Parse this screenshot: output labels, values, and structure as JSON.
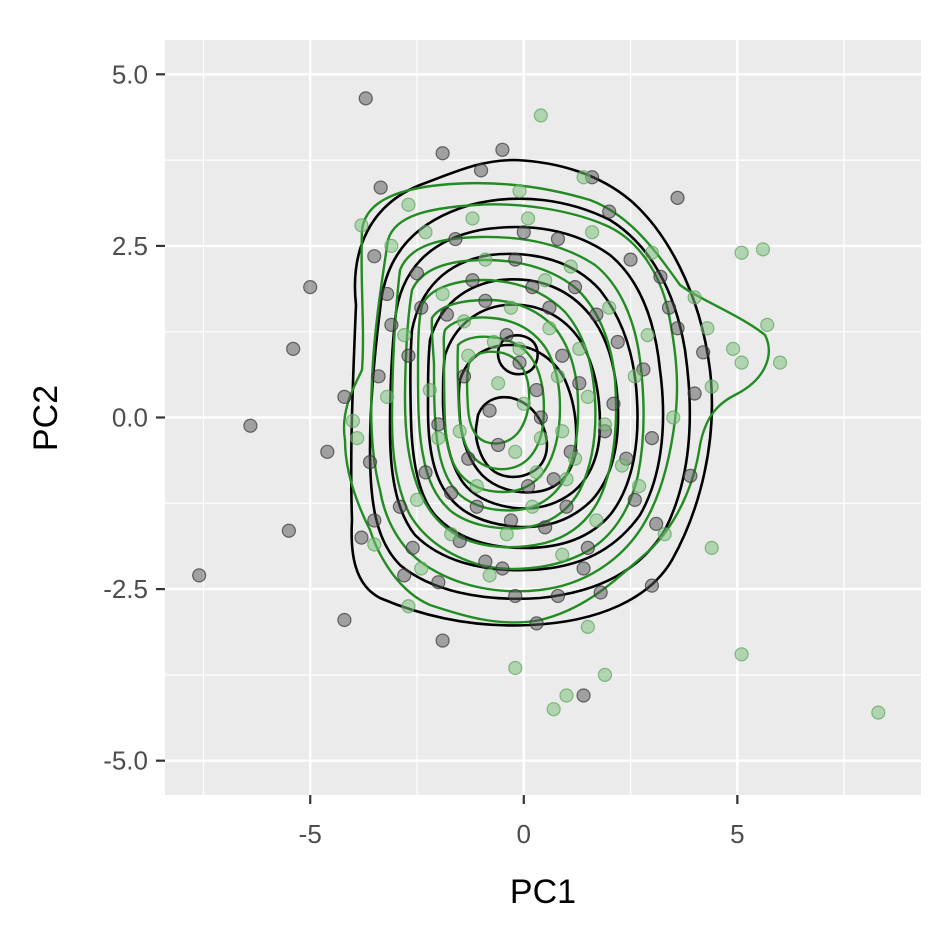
{
  "chart_data": {
    "type": "scatter",
    "title": "",
    "xlabel": "PC1",
    "ylabel": "PC2",
    "xlim": [
      -8.4,
      9.3
    ],
    "ylim": [
      -5.5,
      5.5
    ],
    "x_ticks": [
      -5,
      0,
      5
    ],
    "x_tick_labels": [
      "-5",
      "0",
      "5"
    ],
    "y_ticks": [
      -5,
      -2.5,
      0,
      2.5,
      5
    ],
    "y_tick_labels": [
      "-5.0",
      "-2.5",
      "0.0",
      "2.5",
      "5.0"
    ],
    "grid": true,
    "legend": "none",
    "colors": {
      "panel": "#ebebeb",
      "grid": "#ffffff",
      "group_a_points": "#555555",
      "group_a_contour": "#000000",
      "group_b_points": "#7fbf7f",
      "group_b_contour": "#228b22"
    },
    "series": [
      {
        "color": "#555555",
        "points": [
          [
            -3.7,
            4.65
          ],
          [
            -1.9,
            3.85
          ],
          [
            -0.5,
            3.9
          ],
          [
            -3.35,
            3.35
          ],
          [
            1.6,
            3.5
          ],
          [
            3.6,
            3.2
          ],
          [
            -5.0,
            1.9
          ],
          [
            -5.4,
            1.0
          ],
          [
            -6.4,
            -0.12
          ],
          [
            -7.6,
            -2.3
          ],
          [
            -5.5,
            -1.65
          ],
          [
            -4.6,
            -0.5
          ],
          [
            -4.2,
            -2.95
          ],
          [
            -1.9,
            -3.25
          ],
          [
            0.3,
            -3.0
          ],
          [
            1.4,
            -4.05
          ],
          [
            -3.5,
            2.35
          ],
          [
            -3.2,
            1.8
          ],
          [
            -3.1,
            1.35
          ],
          [
            -3.4,
            0.6
          ],
          [
            -4.2,
            0.3
          ],
          [
            -3.6,
            -0.65
          ],
          [
            -3.8,
            -1.75
          ],
          [
            -3.5,
            -1.5
          ],
          [
            -2.8,
            -2.3
          ],
          [
            -2.0,
            -2.4
          ],
          [
            3.0,
            -2.45
          ],
          [
            1.8,
            -2.55
          ],
          [
            -0.2,
            -2.6
          ],
          [
            0.8,
            -2.6
          ],
          [
            3.2,
            2.05
          ],
          [
            3.4,
            1.6
          ],
          [
            3.6,
            1.3
          ],
          [
            4.0,
            0.35
          ],
          [
            3.9,
            -0.85
          ],
          [
            3.1,
            -1.55
          ],
          [
            4.2,
            0.95
          ],
          [
            2.0,
            3.0
          ],
          [
            -1.0,
            3.6
          ],
          [
            0.8,
            2.6
          ],
          [
            -2.5,
            2.1
          ],
          [
            -0.9,
            -2.1
          ],
          [
            2.6,
            -1.2
          ],
          [
            -2.3,
            -0.8
          ],
          [
            1.1,
            -0.5
          ],
          [
            -0.4,
            1.2
          ],
          [
            0.3,
            0.4
          ],
          [
            -1.4,
            0.6
          ],
          [
            1.7,
            1.5
          ],
          [
            -1.1,
            -1.3
          ],
          [
            0.5,
            -1.6
          ],
          [
            2.1,
            0.2
          ],
          [
            -1.8,
            1.5
          ],
          [
            1.2,
            1.9
          ],
          [
            -0.6,
            -0.4
          ],
          [
            0.9,
            0.9
          ],
          [
            -2.0,
            -0.1
          ],
          [
            2.4,
            -0.6
          ],
          [
            0.1,
            -1.0
          ],
          [
            -1.5,
            -1.8
          ],
          [
            1.5,
            -1.9
          ],
          [
            -0.2,
            2.3
          ],
          [
            -2.7,
            0.9
          ],
          [
            2.8,
            0.7
          ],
          [
            -0.8,
            0.1
          ],
          [
            0.6,
            1.6
          ],
          [
            -1.2,
            2.0
          ],
          [
            1.9,
            -0.2
          ],
          [
            -0.3,
            -1.5
          ],
          [
            0.4,
            0.0
          ],
          [
            -1.7,
            -1.1
          ],
          [
            1.3,
            0.5
          ],
          [
            -0.1,
            0.8
          ],
          [
            0.7,
            -0.9
          ],
          [
            -2.4,
            1.6
          ],
          [
            2.2,
            1.1
          ],
          [
            -0.9,
            1.7
          ],
          [
            1.0,
            -1.3
          ],
          [
            -1.3,
            -0.6
          ],
          [
            0.2,
            1.9
          ],
          [
            -2.9,
            -1.3
          ],
          [
            3.0,
            -0.3
          ],
          [
            -0.5,
            -2.2
          ],
          [
            0.0,
            2.7
          ],
          [
            2.5,
            2.3
          ],
          [
            -2.6,
            -1.9
          ],
          [
            1.4,
            -2.2
          ],
          [
            -1.6,
            2.6
          ]
        ]
      },
      {
        "color": "#7fbf7f",
        "points": [
          [
            0.4,
            4.4
          ],
          [
            -3.8,
            2.8
          ],
          [
            -2.7,
            3.1
          ],
          [
            1.4,
            3.5
          ],
          [
            5.1,
            2.4
          ],
          [
            5.6,
            2.45
          ],
          [
            5.7,
            1.35
          ],
          [
            6.0,
            0.8
          ],
          [
            4.9,
            1.0
          ],
          [
            5.1,
            0.8
          ],
          [
            4.3,
            1.3
          ],
          [
            4.4,
            -1.9
          ],
          [
            8.3,
            -4.3
          ],
          [
            5.1,
            -3.45
          ],
          [
            1.5,
            -3.05
          ],
          [
            1.9,
            -3.75
          ],
          [
            1.0,
            -4.05
          ],
          [
            0.7,
            -4.25
          ],
          [
            -0.2,
            -3.65
          ],
          [
            -2.7,
            -2.75
          ],
          [
            -3.5,
            -1.85
          ],
          [
            -3.9,
            -0.3
          ],
          [
            -4.0,
            -0.05
          ],
          [
            -3.1,
            2.5
          ],
          [
            -0.1,
            3.3
          ],
          [
            4.0,
            1.75
          ],
          [
            4.4,
            0.45
          ],
          [
            3.0,
            2.4
          ],
          [
            -2.3,
            2.7
          ],
          [
            2.7,
            -1.0
          ],
          [
            -2.0,
            -0.3
          ],
          [
            1.5,
            0.3
          ],
          [
            -0.7,
            1.1
          ],
          [
            0.9,
            -0.2
          ],
          [
            -1.3,
            0.9
          ],
          [
            0.3,
            -0.8
          ],
          [
            2.0,
            1.6
          ],
          [
            -1.9,
            1.8
          ],
          [
            1.1,
            2.2
          ],
          [
            -0.4,
            -1.7
          ],
          [
            0.6,
            1.3
          ],
          [
            -1.1,
            -1.0
          ],
          [
            2.3,
            -0.7
          ],
          [
            -2.5,
            -1.2
          ],
          [
            0.0,
            0.2
          ],
          [
            1.7,
            -1.5
          ],
          [
            -0.9,
            2.3
          ],
          [
            0.8,
            0.6
          ],
          [
            -1.5,
            -0.2
          ],
          [
            1.3,
            1.0
          ],
          [
            -0.2,
            -0.5
          ],
          [
            2.6,
            0.6
          ],
          [
            -2.2,
            0.4
          ],
          [
            0.5,
            2.0
          ],
          [
            -0.6,
            0.5
          ],
          [
            1.9,
            -0.1
          ],
          [
            -1.7,
            -1.7
          ],
          [
            0.2,
            -1.3
          ],
          [
            -0.3,
            1.6
          ],
          [
            1.0,
            -0.9
          ],
          [
            -2.8,
            1.2
          ],
          [
            2.9,
            1.2
          ],
          [
            -1.2,
            2.9
          ],
          [
            0.1,
            2.9
          ],
          [
            1.6,
            2.7
          ],
          [
            -2.4,
            -2.2
          ],
          [
            0.9,
            -2.0
          ],
          [
            -0.8,
            -2.3
          ],
          [
            3.3,
            -1.7
          ],
          [
            -3.2,
            0.3
          ],
          [
            3.5,
            0.0
          ],
          [
            -1.4,
            1.4
          ],
          [
            0.4,
            -0.3
          ],
          [
            -0.1,
            1.0
          ],
          [
            1.2,
            -0.6
          ]
        ]
      }
    ]
  }
}
